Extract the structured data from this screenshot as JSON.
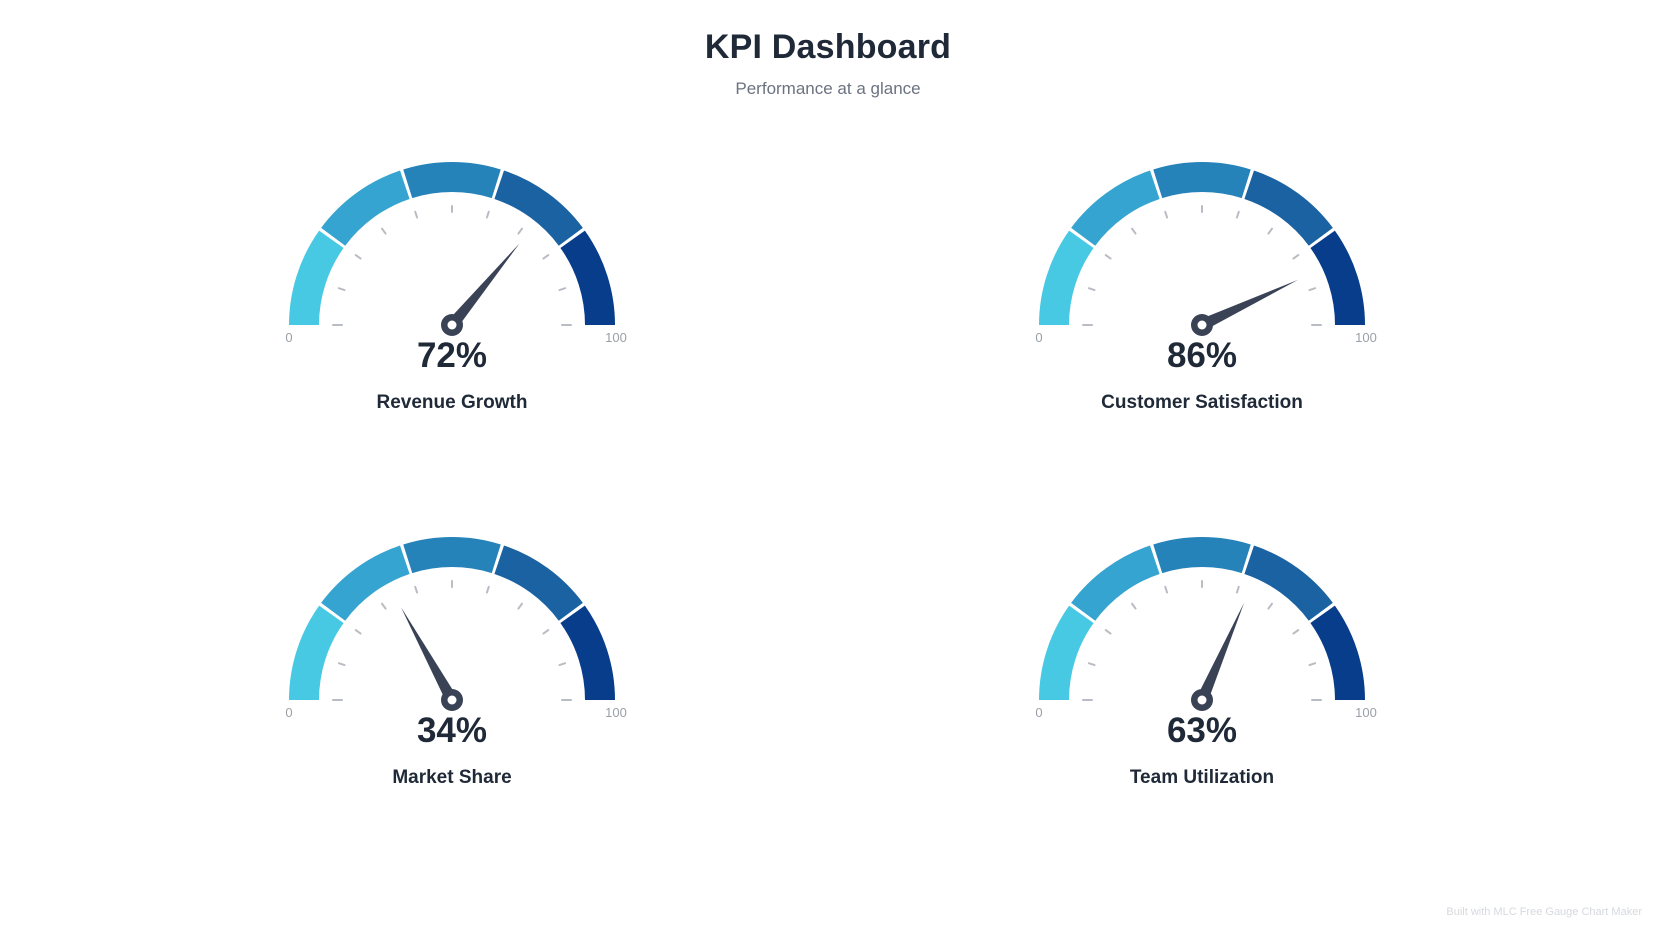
{
  "header": {
    "title": "KPI Dashboard",
    "subtitle": "Performance at a glance"
  },
  "footer": {
    "credit": "Built with MLC Free Gauge Chart Maker"
  },
  "colors": {
    "bands": [
      "#48c9e3",
      "#36a4d0",
      "#2683b9",
      "#1a62a2",
      "#073d8a"
    ],
    "needle": "#3a4256",
    "tick": "#b8bcc4",
    "minmax_text": "#9aa0a8"
  },
  "chart_data": [
    {
      "type": "gauge",
      "label": "Revenue Growth",
      "value": 72,
      "value_text": "72%",
      "min": 0,
      "max": 100,
      "min_label": "0",
      "max_label": "100",
      "bands": 5
    },
    {
      "type": "gauge",
      "label": "Customer Satisfaction",
      "value": 86,
      "value_text": "86%",
      "min": 0,
      "max": 100,
      "min_label": "0",
      "max_label": "100",
      "bands": 5
    },
    {
      "type": "gauge",
      "label": "Market Share",
      "value": 34,
      "value_text": "34%",
      "min": 0,
      "max": 100,
      "min_label": "0",
      "max_label": "100",
      "bands": 5
    },
    {
      "type": "gauge",
      "label": "Team Utilization",
      "value": 63,
      "value_text": "63%",
      "min": 0,
      "max": 100,
      "min_label": "0",
      "max_label": "100",
      "bands": 5
    }
  ]
}
